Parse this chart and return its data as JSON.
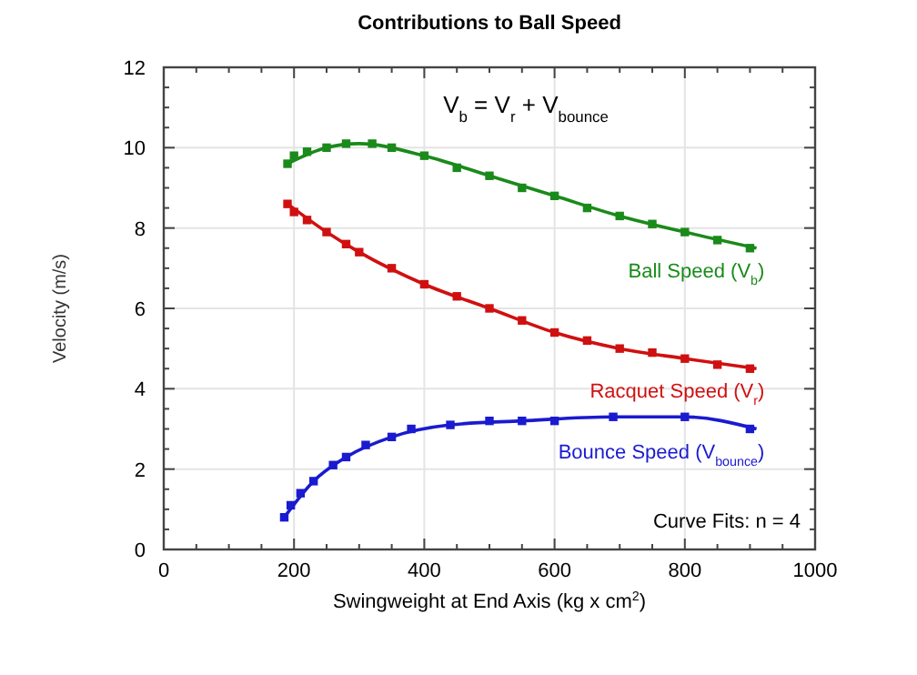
{
  "chart_data": {
    "type": "scatter",
    "title": "Contributions to Ball Speed",
    "xlabel": "Swingweight at End Axis (kg x cm$^{2}$)",
    "ylabel": "Velocity (m/s)",
    "xlim": [
      0,
      1000
    ],
    "xticks": [
      0,
      200,
      400,
      600,
      800,
      1000
    ],
    "ylim": [
      0,
      12
    ],
    "yticks": [
      0,
      2,
      4,
      6,
      8,
      10,
      12
    ],
    "grid": true,
    "marker": "square",
    "annotations": [
      "V$_{b}$ = V$_{r}$ + V$_{bounce}$",
      "Curve Fits: n = 4"
    ],
    "series": [
      {
        "name": "Ball Speed  (V$_{b}$)",
        "color": "#1a8a1a",
        "x": [
          190,
          200,
          220,
          250,
          280,
          320,
          350,
          400,
          450,
          500,
          550,
          600,
          650,
          700,
          750,
          800,
          850,
          900
        ],
        "values": [
          9.6,
          9.8,
          9.9,
          10.0,
          10.1,
          10.1,
          10.0,
          9.8,
          9.5,
          9.3,
          9.0,
          8.8,
          8.5,
          8.3,
          8.1,
          7.9,
          7.7,
          7.5
        ]
      },
      {
        "name": "Racquet Speed (V$_{r}$)",
        "color": "#d01010",
        "x": [
          190,
          200,
          220,
          250,
          280,
          300,
          350,
          400,
          450,
          500,
          550,
          600,
          650,
          700,
          750,
          800,
          850,
          900
        ],
        "values": [
          8.6,
          8.4,
          8.2,
          7.9,
          7.6,
          7.4,
          7.0,
          6.6,
          6.3,
          6.0,
          5.7,
          5.4,
          5.2,
          5.0,
          4.9,
          4.75,
          4.6,
          4.5
        ]
      },
      {
        "name": "Bounce Speed (V$_{bounce}$)",
        "color": "#1a1ad0",
        "x": [
          185,
          195,
          210,
          230,
          260,
          280,
          310,
          350,
          380,
          440,
          500,
          550,
          600,
          690,
          800,
          900
        ],
        "values": [
          0.8,
          1.1,
          1.4,
          1.7,
          2.1,
          2.3,
          2.6,
          2.8,
          3.0,
          3.1,
          3.2,
          3.2,
          3.2,
          3.3,
          3.3,
          3.0
        ]
      },
      {
        "type": "line",
        "marker": "none",
        "color": "#1a8a1a",
        "x": [
          190,
          250,
          300,
          400,
          500,
          600,
          700,
          800,
          910
        ],
        "values": [
          9.6,
          10.0,
          10.1,
          9.8,
          9.3,
          8.8,
          8.3,
          7.9,
          7.5
        ]
      },
      {
        "type": "line",
        "marker": "none",
        "color": "#d01010",
        "x": [
          190,
          250,
          300,
          400,
          500,
          600,
          700,
          800,
          910
        ],
        "values": [
          8.6,
          7.9,
          7.4,
          6.6,
          6.0,
          5.4,
          5.0,
          4.75,
          4.5
        ]
      },
      {
        "type": "line",
        "marker": "none",
        "color": "#1a1ad0",
        "x": [
          185,
          230,
          280,
          350,
          440,
          550,
          690,
          800,
          910
        ],
        "values": [
          0.8,
          1.7,
          2.3,
          2.8,
          3.1,
          3.2,
          3.3,
          3.3,
          3.0
        ]
      }
    ]
  }
}
